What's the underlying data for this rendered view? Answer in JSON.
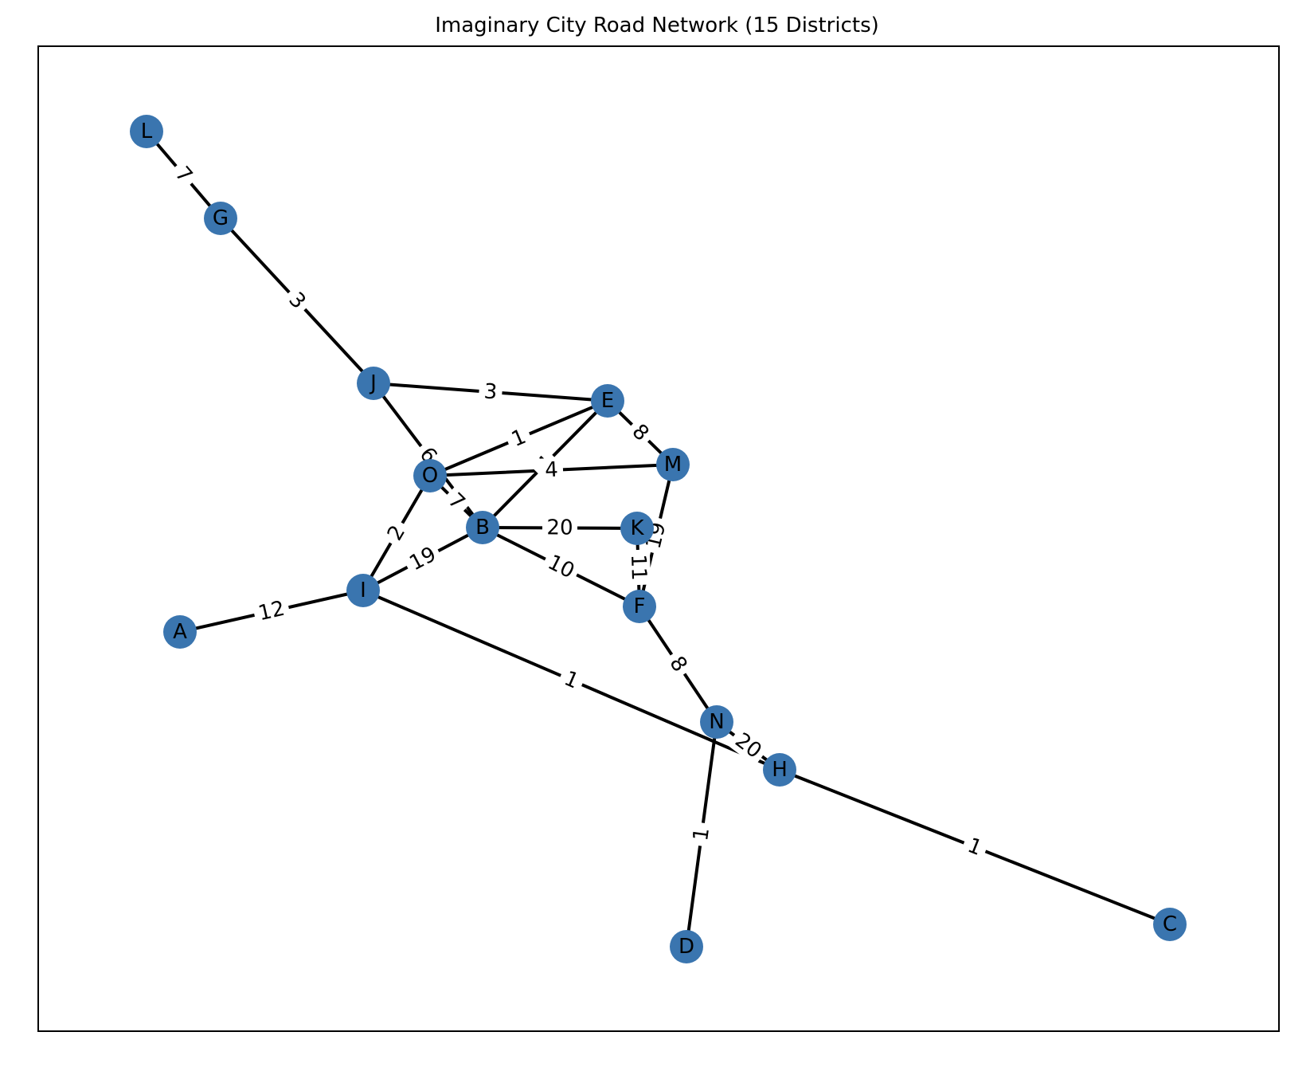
{
  "title": "Imaginary City Road Network (15 Districts)",
  "colors": {
    "node": "#3a75af",
    "edge": "#000000",
    "background": "#ffffff"
  },
  "nodes": [
    {
      "id": "L"
    },
    {
      "id": "G"
    },
    {
      "id": "J"
    },
    {
      "id": "E"
    },
    {
      "id": "M"
    },
    {
      "id": "O"
    },
    {
      "id": "B"
    },
    {
      "id": "K"
    },
    {
      "id": "I"
    },
    {
      "id": "A"
    },
    {
      "id": "F"
    },
    {
      "id": "N"
    },
    {
      "id": "H"
    },
    {
      "id": "D"
    },
    {
      "id": "C"
    }
  ],
  "edges": [
    {
      "source": "L",
      "target": "G",
      "weight": "7"
    },
    {
      "source": "G",
      "target": "J",
      "weight": "3"
    },
    {
      "source": "J",
      "target": "E",
      "weight": "3"
    },
    {
      "source": "J",
      "target": "B",
      "weight": "6"
    },
    {
      "source": "E",
      "target": "M",
      "weight": "8"
    },
    {
      "source": "E",
      "target": "O",
      "weight": "1"
    },
    {
      "source": "E",
      "target": "B",
      "weight": "4"
    },
    {
      "source": "O",
      "target": "M",
      "weight": "4"
    },
    {
      "source": "O",
      "target": "B",
      "weight": "7"
    },
    {
      "source": "O",
      "target": "I",
      "weight": "2"
    },
    {
      "source": "M",
      "target": "F",
      "weight": "19"
    },
    {
      "source": "B",
      "target": "K",
      "weight": "20"
    },
    {
      "source": "B",
      "target": "F",
      "weight": "10"
    },
    {
      "source": "B",
      "target": "I",
      "weight": "19"
    },
    {
      "source": "K",
      "target": "F",
      "weight": "11"
    },
    {
      "source": "I",
      "target": "A",
      "weight": "12"
    },
    {
      "source": "I",
      "target": "H",
      "weight": "1"
    },
    {
      "source": "F",
      "target": "N",
      "weight": "8"
    },
    {
      "source": "N",
      "target": "H",
      "weight": "20"
    },
    {
      "source": "N",
      "target": "D",
      "weight": "1"
    },
    {
      "source": "H",
      "target": "C",
      "weight": "1"
    }
  ]
}
